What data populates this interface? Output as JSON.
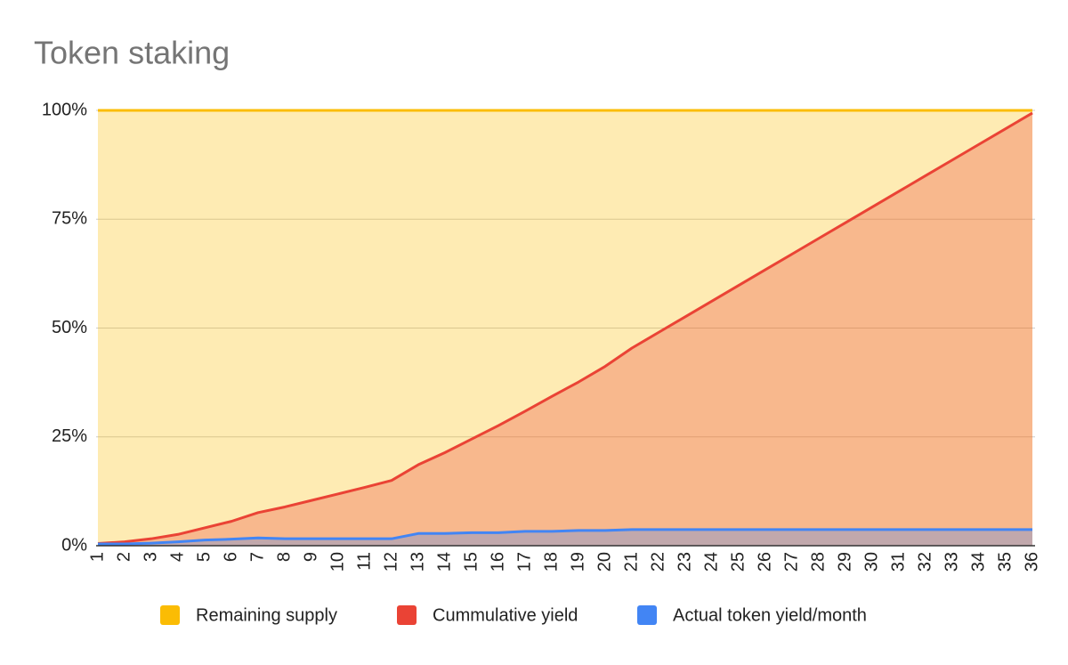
{
  "chart_data": {
    "type": "area",
    "title": "Token staking",
    "categories": [
      "1",
      "2",
      "3",
      "4",
      "5",
      "6",
      "7",
      "8",
      "9",
      "10",
      "11",
      "12",
      "13",
      "14",
      "15",
      "16",
      "17",
      "18",
      "19",
      "20",
      "21",
      "22",
      "23",
      "24",
      "25",
      "26",
      "27",
      "28",
      "29",
      "30",
      "31",
      "32",
      "33",
      "34",
      "35",
      "36"
    ],
    "series": [
      {
        "name": "Remaining supply",
        "color": "#fbbc04",
        "values": [
          100,
          100,
          100,
          100,
          100,
          100,
          100,
          100,
          100,
          100,
          100,
          100,
          100,
          100,
          100,
          100,
          100,
          100,
          100,
          100,
          100,
          100,
          100,
          100,
          100,
          100,
          100,
          100,
          100,
          100,
          100,
          100,
          100,
          100,
          100,
          100
        ]
      },
      {
        "name": "Cummulative yield",
        "color": "#ea4335",
        "values": [
          0.5,
          0.9,
          1.6,
          2.6,
          4.1,
          5.6,
          7.6,
          8.9,
          10.4,
          11.9,
          13.4,
          15.0,
          18.6,
          21.4,
          24.5,
          27.6,
          30.9,
          34.3,
          37.6,
          41.2,
          45.4,
          49.0,
          52.6,
          56.2,
          59.8,
          63.4,
          67.0,
          70.6,
          74.2,
          77.8,
          81.4,
          85.0,
          88.6,
          92.2,
          95.8,
          99.4
        ]
      },
      {
        "name": "Actual token yield/month",
        "color": "#4285f4",
        "values": [
          0.4,
          0.4,
          0.6,
          0.9,
          1.3,
          1.5,
          1.8,
          1.6,
          1.6,
          1.6,
          1.6,
          1.6,
          2.8,
          2.8,
          3.0,
          3.0,
          3.3,
          3.3,
          3.5,
          3.5,
          3.7,
          3.7,
          3.7,
          3.7,
          3.7,
          3.7,
          3.7,
          3.7,
          3.7,
          3.7,
          3.7,
          3.7,
          3.7,
          3.7,
          3.7,
          3.7
        ]
      }
    ],
    "ylim": [
      0,
      100
    ],
    "yticks": [
      {
        "value": 0,
        "label": "0%"
      },
      {
        "value": 25,
        "label": "25%"
      },
      {
        "value": 50,
        "label": "50%"
      },
      {
        "value": 75,
        "label": "75%"
      },
      {
        "value": 100,
        "label": "100%"
      }
    ],
    "grid": true,
    "legend": "bottom"
  }
}
